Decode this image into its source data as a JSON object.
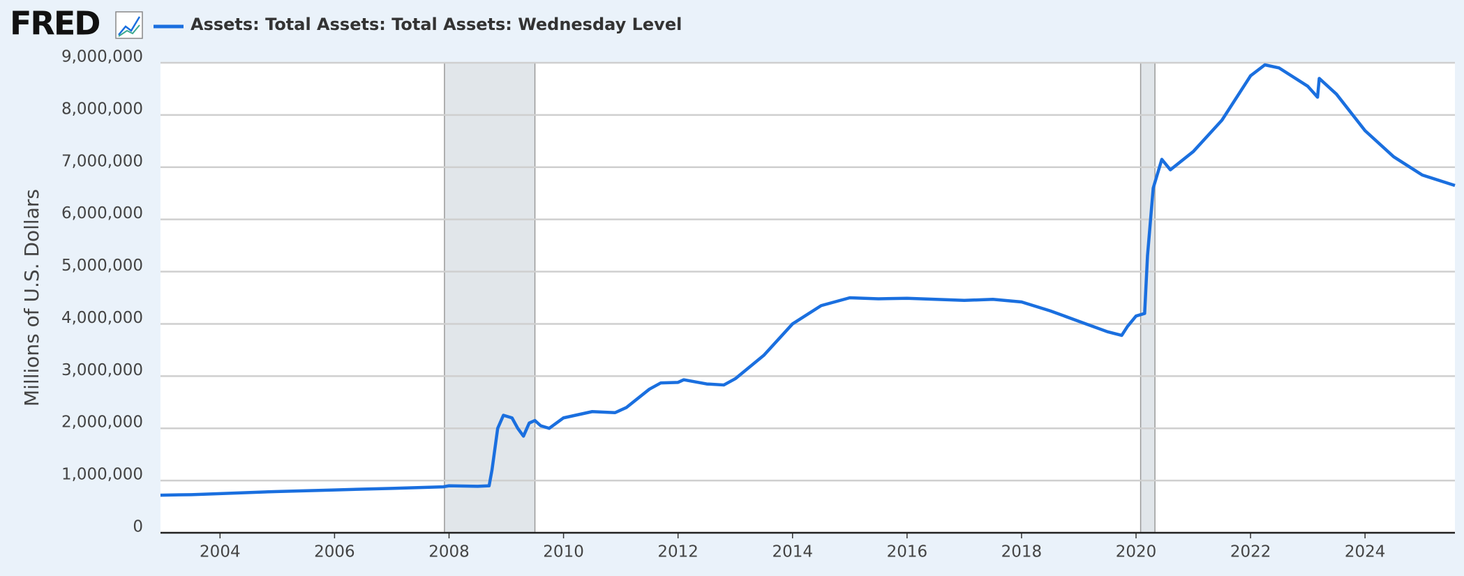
{
  "brand": "FRED",
  "chart_data": {
    "type": "line",
    "ylabel": "Millions of U.S. Dollars",
    "x": [
      2002.96,
      2003.5,
      2004,
      2005,
      2006,
      2007,
      2007.9,
      2008.0,
      2008.5,
      2008.7,
      2008.75,
      2008.85,
      2008.95,
      2009.1,
      2009.2,
      2009.3,
      2009.4,
      2009.5,
      2009.6,
      2009.75,
      2010.0,
      2010.5,
      2010.9,
      2011.1,
      2011.5,
      2011.7,
      2012.0,
      2012.1,
      2012.5,
      2012.8,
      2013.0,
      2013.5,
      2014.0,
      2014.5,
      2015.0,
      2015.5,
      2016.0,
      2017.0,
      2017.5,
      2018.0,
      2018.5,
      2019.0,
      2019.5,
      2019.75,
      2019.85,
      2020.0,
      2020.15,
      2020.2,
      2020.3,
      2020.45,
      2020.6,
      2021.0,
      2021.5,
      2022.0,
      2022.25,
      2022.5,
      2023.0,
      2023.17,
      2023.2,
      2023.5,
      2024.0,
      2024.5,
      2025.0,
      2025.57
    ],
    "series": [
      {
        "name": "Assets: Total Assets: Total Assets: Wednesday Level",
        "color": "#1a6fdf",
        "values": [
          720000,
          730000,
          750000,
          790000,
          820000,
          850000,
          880000,
          900000,
          890000,
          900000,
          1200000,
          2000000,
          2250000,
          2200000,
          2000000,
          1850000,
          2100000,
          2150000,
          2050000,
          2000000,
          2200000,
          2320000,
          2300000,
          2400000,
          2750000,
          2870000,
          2880000,
          2930000,
          2850000,
          2830000,
          2950000,
          3400000,
          4000000,
          4350000,
          4500000,
          4480000,
          4490000,
          4450000,
          4470000,
          4420000,
          4250000,
          4050000,
          3850000,
          3780000,
          3950000,
          4150000,
          4200000,
          5300000,
          6600000,
          7150000,
          6950000,
          7300000,
          7900000,
          8750000,
          8960000,
          8900000,
          8550000,
          8340000,
          8700000,
          8400000,
          7700000,
          7200000,
          6850000,
          6650000
        ]
      }
    ],
    "recessions": [
      [
        2007.92,
        2009.5
      ],
      [
        2020.08,
        2020.33
      ]
    ],
    "xlim": [
      2002.96,
      2025.57
    ],
    "xticks": [
      2004,
      2006,
      2008,
      2010,
      2012,
      2014,
      2016,
      2018,
      2020,
      2022,
      2024
    ],
    "ylim": [
      0,
      9000000
    ],
    "yticks": [
      0,
      {
        "value": 1000000,
        "label": "1,000,000"
      },
      {
        "value": 2000000,
        "label": "2,000,000"
      },
      {
        "value": 3000000,
        "label": "3,000,000"
      },
      {
        "value": 4000000,
        "label": "4,000,000"
      },
      {
        "value": 5000000,
        "label": "5,000,000"
      },
      {
        "value": 6000000,
        "label": "6,000,000"
      },
      {
        "value": 7000000,
        "label": "7,000,000"
      },
      {
        "value": 8000000,
        "label": "8,000,000"
      },
      {
        "value": 9000000,
        "label": "9,000,000"
      }
    ],
    "grid": true
  }
}
